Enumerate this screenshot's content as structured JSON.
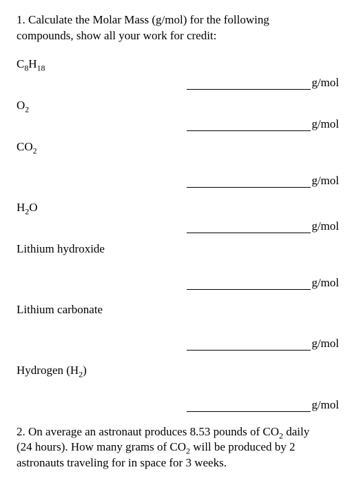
{
  "q1_text_a": "1. Calculate the Molar Mass (g/mol) for the following",
  "q1_text_b": "compounds, show all your work for credit:",
  "unit": "g/mol",
  "compounds": {
    "c8h18": {
      "pre": "C",
      "s1": "8",
      "mid": "H",
      "s2": "18"
    },
    "o2": {
      "pre": "O",
      "s1": "2"
    },
    "co2": {
      "pre": "CO",
      "s1": "2"
    },
    "h2o": {
      "pre": "H",
      "s1": "2",
      "mid": "O"
    },
    "lioh": "Lithium hydroxide",
    "li2co3": "Lithium carbonate",
    "h2": {
      "pre": "Hydrogen (H",
      "s1": "2",
      "post": ")"
    }
  },
  "q2_line1_a": "2. On average an astronaut produces 8.53 pounds of CO",
  "q2_line1_sub": "2",
  "q2_line1_b": " daily",
  "q2_line2_a": "(24 hours). How many grams of CO",
  "q2_line2_sub": "2",
  "q2_line2_b": " will be produced by 2",
  "q2_line3": "astronauts traveling for in space for 3 weeks.",
  "colors": {
    "background": "#ffffff",
    "text": "#000000",
    "underline": "#000000"
  },
  "fontsize_body": 17
}
